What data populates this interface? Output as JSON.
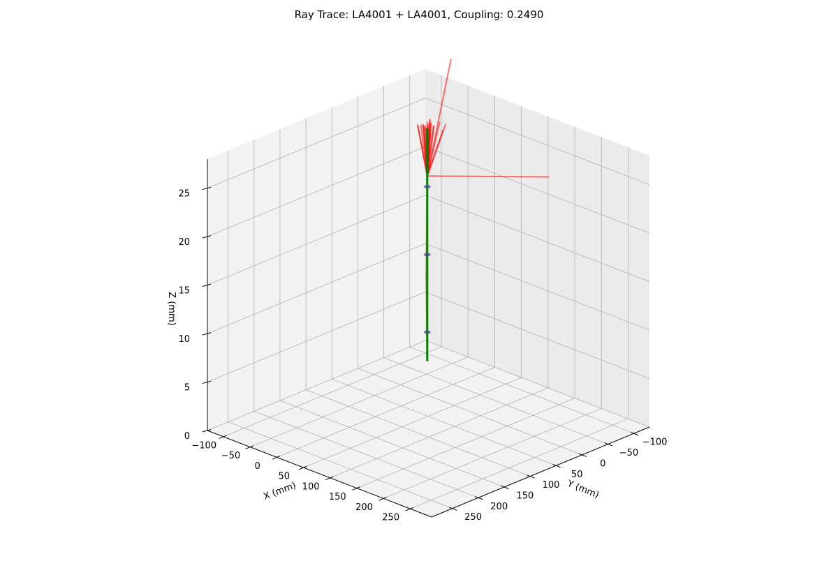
{
  "chart_data": {
    "type": "3d-line",
    "title": "Ray Trace: LA4001 + LA4001, Coupling: 0.2490",
    "xlabel": "X (mm)",
    "ylabel": "Y (mm)",
    "zlabel": "Z (mm)",
    "x_ticks": [
      "250",
      "200",
      "150",
      "100",
      "50",
      "0",
      "−50",
      "−100"
    ],
    "y_ticks": [
      "−100",
      "−50",
      "0",
      "50",
      "100",
      "150",
      "200",
      "250"
    ],
    "z_ticks": [
      "0",
      "5",
      "10",
      "15",
      "20",
      "25"
    ],
    "xlim": [
      -130,
      290
    ],
    "ylim": [
      -130,
      290
    ],
    "zlim": [
      0,
      28
    ],
    "grid": true,
    "optical_axis": {
      "z_range": [
        3.5,
        27.5
      ],
      "color": "#008000"
    },
    "lens_markers_z": [
      6.5,
      14.5,
      21.5
    ],
    "ray_color": "#ff0000",
    "rays": [
      {
        "name": "r1",
        "points": [
          [
            0,
            0,
            4
          ],
          [
            1,
            1,
            12
          ],
          [
            0,
            0,
            22.6
          ],
          [
            -140,
            -190,
            27.5
          ]
        ]
      },
      {
        "name": "r2",
        "points": [
          [
            0,
            0,
            4
          ],
          [
            -1,
            1,
            12
          ],
          [
            0,
            0,
            22.6
          ],
          [
            170,
            -60,
            24.8
          ]
        ]
      },
      {
        "name": "r3",
        "points": [
          [
            0,
            0,
            4
          ],
          [
            0,
            0,
            22.6
          ],
          [
            14,
            12,
            27.6
          ]
        ]
      },
      {
        "name": "r4",
        "points": [
          [
            0,
            0,
            4
          ],
          [
            0,
            0,
            22.6
          ],
          [
            -12,
            -18,
            27.7
          ]
        ]
      },
      {
        "name": "r5",
        "points": [
          [
            0,
            0,
            4
          ],
          [
            0,
            0,
            22.6
          ],
          [
            25,
            -10,
            28.3
          ]
        ]
      },
      {
        "name": "r6",
        "points": [
          [
            0,
            0,
            4
          ],
          [
            0,
            0,
            22.6
          ],
          [
            18,
            -12,
            27.5
          ]
        ]
      },
      {
        "name": "r7",
        "points": [
          [
            0,
            0,
            4
          ],
          [
            0,
            0,
            22.6
          ],
          [
            -18,
            -6,
            27.4
          ]
        ]
      },
      {
        "name": "r8",
        "points": [
          [
            0,
            0,
            4
          ],
          [
            0,
            0,
            22.6
          ],
          [
            8,
            -16,
            28.0
          ]
        ]
      },
      {
        "name": "r9",
        "points": [
          [
            0,
            0,
            4
          ],
          [
            0,
            0,
            22.6
          ],
          [
            -10,
            8,
            27.8
          ]
        ]
      },
      {
        "name": "r10",
        "points": [
          [
            0,
            0,
            4
          ],
          [
            0,
            0,
            22.6
          ],
          [
            6,
            4,
            27.9
          ]
        ]
      },
      {
        "name": "r11",
        "points": [
          [
            0,
            0,
            4
          ],
          [
            0,
            0,
            22.6
          ],
          [
            -4,
            -4,
            28.0
          ]
        ]
      },
      {
        "name": "r12",
        "points": [
          [
            0,
            0,
            4
          ],
          [
            0,
            0,
            22.6
          ],
          [
            3,
            -3,
            28.1
          ]
        ]
      },
      {
        "name": "r13",
        "points": [
          [
            0,
            0,
            4
          ],
          [
            0,
            0,
            22.6
          ],
          [
            -6,
            2,
            27.9
          ]
        ]
      },
      {
        "name": "r14",
        "points": [
          [
            0,
            0,
            4
          ],
          [
            0,
            0,
            22.6
          ],
          [
            10,
            -2,
            28.0
          ]
        ]
      },
      {
        "name": "r15",
        "points": [
          [
            0,
            0,
            4
          ],
          [
            0,
            0,
            22.6
          ],
          [
            -2,
            -10,
            27.8
          ]
        ]
      },
      {
        "name": "r16",
        "points": [
          [
            0,
            0,
            4
          ],
          [
            0,
            0,
            22.6
          ],
          [
            2,
            6,
            28.0
          ]
        ]
      },
      {
        "name": "r17",
        "points": [
          [
            0,
            0,
            4
          ],
          [
            0,
            0,
            22.6
          ],
          [
            -8,
            -2,
            27.6
          ]
        ]
      },
      {
        "name": "r18",
        "points": [
          [
            0,
            0,
            4
          ],
          [
            0,
            0,
            22.6
          ],
          [
            5,
            -8,
            27.7
          ]
        ]
      },
      {
        "name": "r19",
        "points": [
          [
            0,
            0,
            4
          ],
          [
            0,
            0,
            22.6
          ],
          [
            -3,
            5,
            27.9
          ]
        ]
      },
      {
        "name": "r20",
        "points": [
          [
            0,
            0,
            4
          ],
          [
            0,
            0,
            22.6
          ],
          [
            12,
            6,
            27.8
          ]
        ]
      },
      {
        "name": "r21",
        "points": [
          [
            0,
            0,
            4
          ],
          [
            0,
            0,
            22.6
          ],
          [
            -14,
            4,
            27.7
          ]
        ]
      },
      {
        "name": "r22",
        "points": [
          [
            0,
            0,
            4
          ],
          [
            0,
            0,
            22.6
          ],
          [
            7,
            10,
            28.0
          ]
        ]
      },
      {
        "name": "r23",
        "points": [
          [
            0,
            0,
            4
          ],
          [
            0,
            0,
            22.6
          ],
          [
            -7,
            -12,
            28.1
          ]
        ]
      },
      {
        "name": "r24",
        "points": [
          [
            0,
            0,
            4
          ],
          [
            0,
            0,
            22.6
          ],
          [
            1,
            -1,
            28.0
          ]
        ]
      }
    ]
  }
}
